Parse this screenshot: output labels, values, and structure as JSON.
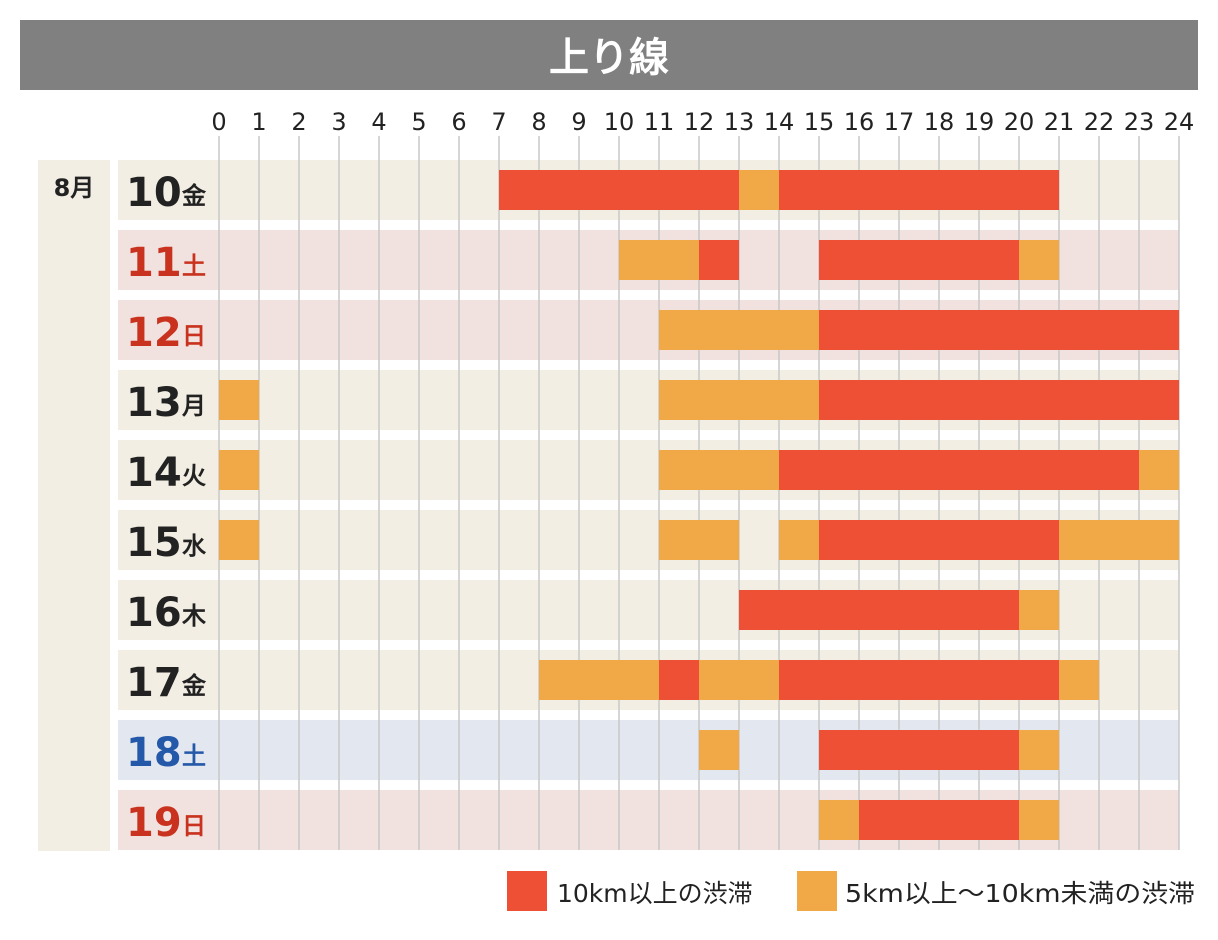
{
  "title": "上り線",
  "month_label": "8月",
  "colors": {
    "header_bg": "#808080",
    "header_text": "#ffffff",
    "weekday_bg": "#f2eee4",
    "weekend_bg": "#f2e2df",
    "saturday_blue_bg": "#e3e7ef",
    "grid_line": "#c8c8c8",
    "severe": "#ee5035",
    "moderate": "#f1a847",
    "text_dark": "#222222",
    "text_red": "#c8321e",
    "text_blue": "#2458a8"
  },
  "chart_data": {
    "type": "gantt",
    "x_range": [
      0,
      24
    ],
    "x_ticks": [
      "0",
      "1",
      "2",
      "3",
      "4",
      "5",
      "6",
      "7",
      "8",
      "9",
      "10",
      "11",
      "12",
      "13",
      "14",
      "15",
      "16",
      "17",
      "18",
      "19",
      "20",
      "21",
      "22",
      "23",
      "24"
    ],
    "legend": [
      {
        "key": "severe",
        "label": "10km以上の渋滞"
      },
      {
        "key": "moderate",
        "label": "5km以上〜10km未満の渋滞"
      }
    ],
    "rows": [
      {
        "day": "10",
        "weekday": "金",
        "style": "weekday",
        "segments": [
          {
            "start": 7,
            "end": 13,
            "level": "severe"
          },
          {
            "start": 13,
            "end": 14,
            "level": "moderate"
          },
          {
            "start": 14,
            "end": 21,
            "level": "severe"
          }
        ]
      },
      {
        "day": "11",
        "weekday": "土",
        "style": "holiday",
        "segments": [
          {
            "start": 10,
            "end": 12,
            "level": "moderate"
          },
          {
            "start": 12,
            "end": 13,
            "level": "severe"
          },
          {
            "start": 15,
            "end": 20,
            "level": "severe"
          },
          {
            "start": 20,
            "end": 21,
            "level": "moderate"
          }
        ]
      },
      {
        "day": "12",
        "weekday": "日",
        "style": "holiday",
        "segments": [
          {
            "start": 11,
            "end": 15,
            "level": "moderate"
          },
          {
            "start": 15,
            "end": 24,
            "level": "severe"
          }
        ]
      },
      {
        "day": "13",
        "weekday": "月",
        "style": "weekday",
        "segments": [
          {
            "start": 0,
            "end": 1,
            "level": "moderate"
          },
          {
            "start": 11,
            "end": 15,
            "level": "moderate"
          },
          {
            "start": 15,
            "end": 24,
            "level": "severe"
          }
        ]
      },
      {
        "day": "14",
        "weekday": "火",
        "style": "weekday",
        "segments": [
          {
            "start": 0,
            "end": 1,
            "level": "moderate"
          },
          {
            "start": 11,
            "end": 14,
            "level": "moderate"
          },
          {
            "start": 14,
            "end": 23,
            "level": "severe"
          },
          {
            "start": 23,
            "end": 24,
            "level": "moderate"
          }
        ]
      },
      {
        "day": "15",
        "weekday": "水",
        "style": "weekday",
        "segments": [
          {
            "start": 0,
            "end": 1,
            "level": "moderate"
          },
          {
            "start": 11,
            "end": 13,
            "level": "moderate"
          },
          {
            "start": 14,
            "end": 15,
            "level": "moderate"
          },
          {
            "start": 15,
            "end": 21,
            "level": "severe"
          },
          {
            "start": 21,
            "end": 24,
            "level": "moderate"
          }
        ]
      },
      {
        "day": "16",
        "weekday": "木",
        "style": "weekday",
        "segments": [
          {
            "start": 13,
            "end": 20,
            "level": "severe"
          },
          {
            "start": 20,
            "end": 21,
            "level": "moderate"
          }
        ]
      },
      {
        "day": "17",
        "weekday": "金",
        "style": "weekday",
        "segments": [
          {
            "start": 8,
            "end": 11,
            "level": "moderate"
          },
          {
            "start": 11,
            "end": 12,
            "level": "severe"
          },
          {
            "start": 12,
            "end": 14,
            "level": "moderate"
          },
          {
            "start": 14,
            "end": 21,
            "level": "severe"
          },
          {
            "start": 21,
            "end": 22,
            "level": "moderate"
          }
        ]
      },
      {
        "day": "18",
        "weekday": "土",
        "style": "saturday",
        "segments": [
          {
            "start": 12,
            "end": 13,
            "level": "moderate"
          },
          {
            "start": 15,
            "end": 20,
            "level": "severe"
          },
          {
            "start": 20,
            "end": 21,
            "level": "moderate"
          }
        ]
      },
      {
        "day": "19",
        "weekday": "日",
        "style": "holiday",
        "segments": [
          {
            "start": 15,
            "end": 16,
            "level": "moderate"
          },
          {
            "start": 16,
            "end": 20,
            "level": "severe"
          },
          {
            "start": 20,
            "end": 21,
            "level": "moderate"
          }
        ]
      }
    ]
  }
}
